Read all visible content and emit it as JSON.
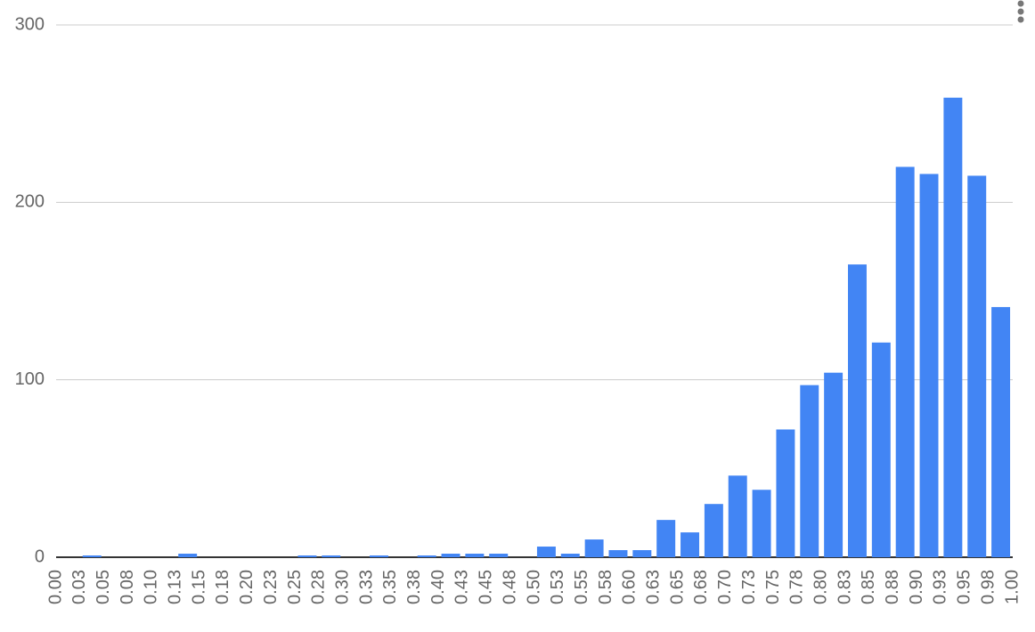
{
  "chart_data": {
    "type": "histogram",
    "bins": [
      {
        "value": 0,
        "label": "0.00"
      },
      {
        "value": 0.025,
        "label": "0.03"
      },
      {
        "value": 0.05,
        "label": "0.05"
      },
      {
        "value": 0.075,
        "label": "0.08"
      },
      {
        "value": 0.1,
        "label": "0.10"
      },
      {
        "value": 0.125,
        "label": "0.13"
      },
      {
        "value": 0.15,
        "label": "0.15"
      },
      {
        "value": 0.175,
        "label": "0.18"
      },
      {
        "value": 0.2,
        "label": "0.20"
      },
      {
        "value": 0.225,
        "label": "0.23"
      },
      {
        "value": 0.25,
        "label": "0.25"
      },
      {
        "value": 0.275,
        "label": "0.28"
      },
      {
        "value": 0.3,
        "label": "0.30"
      },
      {
        "value": 0.325,
        "label": "0.33"
      },
      {
        "value": 0.35,
        "label": "0.35"
      },
      {
        "value": 0.375,
        "label": "0.38"
      },
      {
        "value": 0.4,
        "label": "0.40"
      },
      {
        "value": 0.425,
        "label": "0.43"
      },
      {
        "value": 0.45,
        "label": "0.45"
      },
      {
        "value": 0.475,
        "label": "0.48"
      },
      {
        "value": 0.5,
        "label": "0.50"
      },
      {
        "value": 0.525,
        "label": "0.53"
      },
      {
        "value": 0.55,
        "label": "0.55"
      },
      {
        "value": 0.575,
        "label": "0.58"
      },
      {
        "value": 0.6,
        "label": "0.60"
      },
      {
        "value": 0.625,
        "label": "0.63"
      },
      {
        "value": 0.65,
        "label": "0.65"
      },
      {
        "value": 0.675,
        "label": "0.68"
      },
      {
        "value": 0.7,
        "label": "0.70"
      },
      {
        "value": 0.725,
        "label": "0.73"
      },
      {
        "value": 0.75,
        "label": "0.75"
      },
      {
        "value": 0.775,
        "label": "0.78"
      },
      {
        "value": 0.8,
        "label": "0.80"
      },
      {
        "value": 0.825,
        "label": "0.83"
      },
      {
        "value": 0.85,
        "label": "0.85"
      },
      {
        "value": 0.875,
        "label": "0.88"
      },
      {
        "value": 0.9,
        "label": "0.90"
      },
      {
        "value": 0.925,
        "label": "0.93"
      },
      {
        "value": 0.95,
        "label": "0.95"
      },
      {
        "value": 0.975,
        "label": "0.98"
      },
      {
        "value": 1,
        "label": "1.00"
      }
    ],
    "values": [
      0,
      1,
      0,
      0,
      0,
      2,
      0,
      0,
      0,
      0,
      1,
      1,
      0,
      1,
      0,
      1,
      2,
      2,
      2,
      0,
      6,
      2,
      10,
      4,
      4,
      21,
      14,
      30,
      46,
      38,
      72,
      97,
      104,
      165,
      121,
      220,
      216,
      259,
      215,
      141
    ],
    "color": "#4285f4",
    "xlim": [
      0,
      1
    ],
    "ylim": [
      0,
      300
    ],
    "yticks": [
      0,
      100,
      200,
      300
    ],
    "grid": true
  }
}
